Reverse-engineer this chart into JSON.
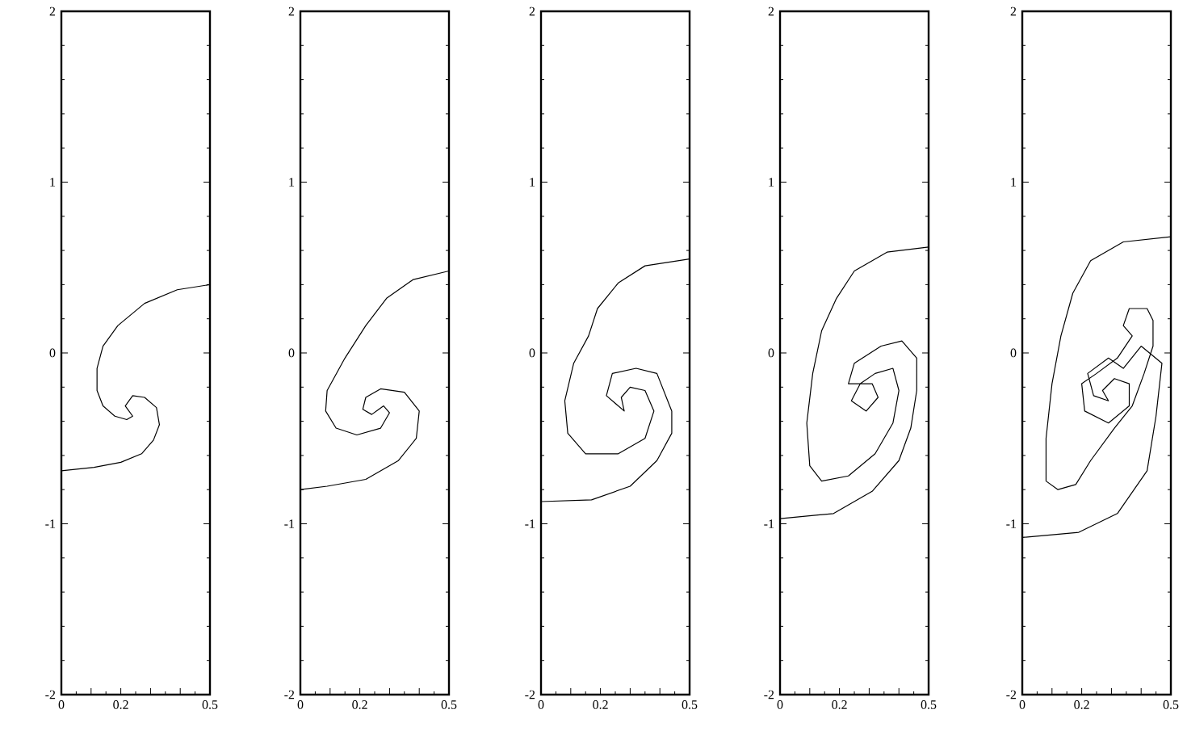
{
  "chart_data": [
    {
      "type": "line",
      "xlim": [
        0,
        0.5
      ],
      "ylim": [
        -2,
        2
      ],
      "yticks": [
        -2,
        -1,
        0,
        1,
        2
      ],
      "xticks": [
        0,
        {
          "value": 0.1,
          "label": null
        },
        0.2,
        {
          "value": 0.3,
          "label": null
        },
        {
          "value": 0.4,
          "label": null
        },
        0.5
      ],
      "grid": false,
      "line_style": "solid",
      "marker": "none",
      "series": [
        {
          "color": "#000000",
          "x": [
            0.5,
            0.39,
            0.28,
            0.19,
            0.14,
            0.12,
            0.12,
            0.14,
            0.18,
            0.22,
            0.24,
            0.215,
            0.24,
            0.28,
            0.32,
            0.33,
            0.31,
            0.27,
            0.2,
            0.11,
            0
          ],
          "values": [
            0.4,
            0.37,
            0.29,
            0.16,
            0.04,
            -0.09,
            -0.22,
            -0.31,
            -0.37,
            -0.39,
            -0.37,
            -0.31,
            -0.25,
            -0.26,
            -0.32,
            -0.42,
            -0.51,
            -0.59,
            -0.64,
            -0.67,
            -0.69
          ]
        }
      ]
    },
    {
      "type": "line",
      "xlim": [
        0,
        0.5
      ],
      "ylim": [
        -2,
        2
      ],
      "yticks": [
        -2,
        -1,
        0,
        1,
        2
      ],
      "xticks": [
        0,
        {
          "value": 0.1,
          "label": null
        },
        0.2,
        {
          "value": 0.3,
          "label": null
        },
        {
          "value": 0.4,
          "label": null
        },
        0.5
      ],
      "grid": false,
      "line_style": "solid",
      "marker": "none",
      "series": [
        {
          "color": "#000000",
          "x": [
            0.5,
            0.38,
            0.29,
            0.22,
            0.15,
            0.09,
            0.085,
            0.12,
            0.19,
            0.27,
            0.3,
            0.28,
            0.24,
            0.21,
            0.22,
            0.27,
            0.35,
            0.4,
            0.39,
            0.33,
            0.22,
            0.09,
            0
          ],
          "values": [
            0.48,
            0.43,
            0.32,
            0.16,
            -0.03,
            -0.22,
            -0.34,
            -0.44,
            -0.48,
            -0.44,
            -0.35,
            -0.31,
            -0.36,
            -0.33,
            -0.26,
            -0.21,
            -0.23,
            -0.34,
            -0.5,
            -0.63,
            -0.74,
            -0.78,
            -0.8
          ]
        }
      ]
    },
    {
      "type": "line",
      "xlim": [
        0,
        0.5
      ],
      "ylim": [
        -2,
        2
      ],
      "yticks": [
        -2,
        -1,
        0,
        1,
        2
      ],
      "xticks": [
        0,
        {
          "value": 0.1,
          "label": null
        },
        0.2,
        {
          "value": 0.3,
          "label": null
        },
        {
          "value": 0.4,
          "label": null
        },
        0.5
      ],
      "grid": false,
      "line_style": "solid",
      "marker": "none",
      "series": [
        {
          "color": "#000000",
          "x": [
            0.5,
            0.35,
            0.26,
            0.19,
            0.16,
            0.11,
            0.08,
            0.09,
            0.15,
            0.26,
            0.35,
            0.38,
            0.35,
            0.3,
            0.27,
            0.28,
            0.22,
            0.24,
            0.32,
            0.39,
            0.44,
            0.44,
            0.39,
            0.3,
            0.17,
            0
          ],
          "values": [
            0.55,
            0.51,
            0.41,
            0.26,
            0.1,
            -0.06,
            -0.28,
            -0.47,
            -0.59,
            -0.59,
            -0.5,
            -0.34,
            -0.22,
            -0.2,
            -0.26,
            -0.34,
            -0.25,
            -0.12,
            -0.09,
            -0.12,
            -0.34,
            -0.47,
            -0.63,
            -0.78,
            -0.86,
            -0.87
          ]
        }
      ]
    },
    {
      "type": "line",
      "xlim": [
        0,
        0.5
      ],
      "ylim": [
        -2,
        2
      ],
      "yticks": [
        -2,
        -1,
        0,
        1,
        2
      ],
      "xticks": [
        0,
        {
          "value": 0.1,
          "label": null
        },
        0.2,
        {
          "value": 0.3,
          "label": null
        },
        {
          "value": 0.4,
          "label": null
        },
        0.5
      ],
      "grid": false,
      "line_style": "solid",
      "marker": "none",
      "series": [
        {
          "color": "#000000",
          "x": [
            0.5,
            0.36,
            0.25,
            0.19,
            0.14,
            0.11,
            0.09,
            0.1,
            0.14,
            0.23,
            0.32,
            0.38,
            0.4,
            0.38,
            0.32,
            0.27,
            0.24,
            0.29,
            0.33,
            0.31,
            0.23,
            0.25,
            0.34,
            0.41,
            0.46,
            0.46,
            0.44,
            0.4,
            0.31,
            0.18,
            0
          ],
          "values": [
            0.62,
            0.59,
            0.48,
            0.32,
            0.13,
            -0.12,
            -0.41,
            -0.66,
            -0.75,
            -0.72,
            -0.59,
            -0.41,
            -0.22,
            -0.09,
            -0.12,
            -0.18,
            -0.28,
            -0.34,
            -0.26,
            -0.18,
            -0.18,
            -0.06,
            0.04,
            0.07,
            -0.03,
            -0.22,
            -0.44,
            -0.63,
            -0.81,
            -0.94,
            -0.97
          ]
        }
      ]
    },
    {
      "type": "line",
      "xlim": [
        0,
        0.5
      ],
      "ylim": [
        -2,
        2
      ],
      "yticks": [
        -2,
        -1,
        0,
        1,
        2
      ],
      "xticks": [
        0,
        {
          "value": 0.1,
          "label": null
        },
        0.2,
        {
          "value": 0.3,
          "label": null
        },
        {
          "value": 0.4,
          "label": null
        },
        0.5
      ],
      "grid": false,
      "line_style": "solid",
      "marker": "none",
      "series": [
        {
          "color": "#000000",
          "x": [
            0.5,
            0.34,
            0.23,
            0.17,
            0.13,
            0.1,
            0.08,
            0.08,
            0.12,
            0.18,
            0.23,
            0.31,
            0.37,
            0.41,
            0.44,
            0.44,
            0.42,
            0.36,
            0.34,
            0.37,
            0.32,
            0.25,
            0.2,
            0.21,
            0.29,
            0.36,
            0.36,
            0.31,
            0.27,
            0.29,
            0.24,
            0.22,
            0.29,
            0.34,
            0.4,
            0.47,
            0.45,
            0.42,
            0.32,
            0.19,
            0
          ],
          "values": [
            0.68,
            0.65,
            0.54,
            0.35,
            0.1,
            -0.18,
            -0.5,
            -0.75,
            -0.8,
            -0.77,
            -0.63,
            -0.44,
            -0.31,
            -0.12,
            0.04,
            0.19,
            0.26,
            0.26,
            0.16,
            0.1,
            -0.03,
            -0.12,
            -0.18,
            -0.34,
            -0.41,
            -0.31,
            -0.18,
            -0.15,
            -0.22,
            -0.28,
            -0.25,
            -0.12,
            -0.03,
            -0.09,
            0.04,
            -0.06,
            -0.37,
            -0.69,
            -0.94,
            -1.05,
            -1.08
          ]
        }
      ]
    }
  ]
}
